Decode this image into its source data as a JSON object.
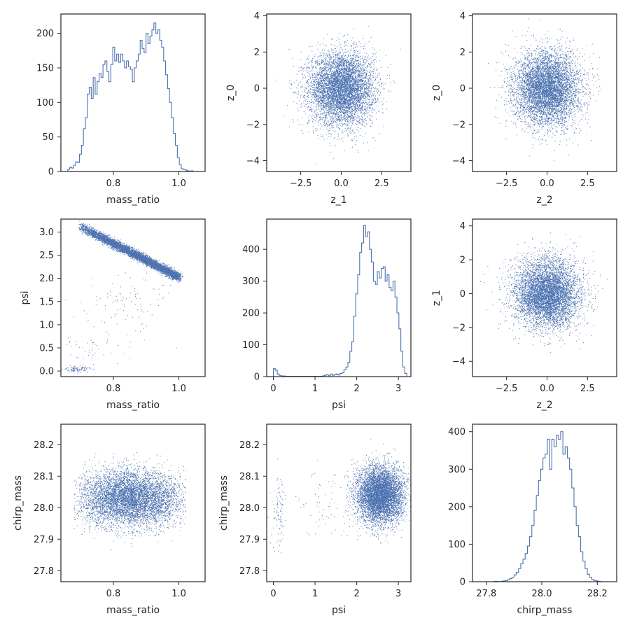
{
  "colors": {
    "series": "#4c72b0",
    "axes": "#262626",
    "background": "#ffffff"
  },
  "chart_data": [
    {
      "id": "p00",
      "type": "histogram",
      "xlabel": "mass_ratio",
      "ylabel": "",
      "xlim": [
        0.64,
        1.08
      ],
      "ylim": [
        0,
        228
      ],
      "xticks": [
        0.8,
        1.0
      ],
      "yticks": [
        0,
        50,
        100,
        150,
        200
      ],
      "hist": {
        "x0": 0.655,
        "x1": 1.055,
        "counts": [
          0,
          3,
          6,
          5,
          9,
          14,
          13,
          25,
          38,
          62,
          78,
          112,
          122,
          106,
          136,
          112,
          130,
          142,
          136,
          155,
          160,
          145,
          130,
          155,
          180,
          160,
          170,
          158,
          170,
          160,
          150,
          160,
          152,
          148,
          130,
          150,
          160,
          170,
          190,
          178,
          172,
          200,
          185,
          196,
          205,
          215,
          200,
          205,
          190,
          180,
          160,
          140,
          120,
          100,
          78,
          55,
          38,
          20,
          10,
          4,
          3,
          2,
          1,
          0,
          1,
          0,
          0
        ]
      }
    },
    {
      "id": "p01",
      "type": "scatter",
      "xlabel": "z_1",
      "ylabel": "z_0",
      "xlim": [
        -4.6,
        4.3
      ],
      "ylim": [
        -4.6,
        4.1
      ],
      "xticks": [
        -2.5,
        0.0,
        2.5
      ],
      "yticks": [
        -4,
        -2,
        0,
        2,
        4
      ],
      "cloud": {
        "kind": "gauss",
        "cx": 0,
        "cy": 0,
        "sx": 1,
        "sy": 1,
        "n": 6000
      }
    },
    {
      "id": "p02",
      "type": "scatter",
      "xlabel": "z_2",
      "ylabel": "z_0",
      "xlim": [
        -4.6,
        4.3
      ],
      "ylim": [
        -4.6,
        4.1
      ],
      "xticks": [
        -2.5,
        0.0,
        2.5
      ],
      "yticks": [
        -4,
        -2,
        0,
        2,
        4
      ],
      "cloud": {
        "kind": "gauss",
        "cx": 0,
        "cy": 0,
        "sx": 1,
        "sy": 1,
        "n": 6000
      }
    },
    {
      "id": "p10",
      "type": "scatter",
      "xlabel": "mass_ratio",
      "ylabel": "psi",
      "xlim": [
        0.64,
        1.08
      ],
      "ylim": [
        -0.12,
        3.28
      ],
      "xticks": [
        0.8,
        1.0
      ],
      "yticks": [
        0.0,
        0.5,
        1.0,
        1.5,
        2.0,
        2.5,
        3.0
      ],
      "cloud": {
        "kind": "band",
        "xa": 0.7,
        "xb": 1.0,
        "ya": 3.12,
        "yb": 2.03,
        "sx": 0.005,
        "sy": 0.045,
        "n": 6000
      }
    },
    {
      "id": "p11",
      "type": "histogram",
      "xlabel": "psi",
      "ylabel": "",
      "xlim": [
        -0.16,
        3.3
      ],
      "ylim": [
        0,
        495
      ],
      "xticks": [
        0,
        1,
        2,
        3
      ],
      "yticks": [
        0,
        100,
        200,
        300,
        400
      ],
      "hist": {
        "x0": 0,
        "x1": 3.2,
        "counts": [
          25,
          20,
          8,
          4,
          2,
          2,
          1,
          1,
          1,
          1,
          1,
          1,
          1,
          1,
          1,
          1,
          1,
          1,
          1,
          1,
          1,
          1,
          1,
          1,
          1,
          2,
          4,
          6,
          3,
          8,
          4,
          6,
          8,
          5,
          10,
          12,
          22,
          30,
          45,
          80,
          110,
          190,
          260,
          320,
          390,
          420,
          475,
          440,
          455,
          400,
          360,
          300,
          290,
          330,
          310,
          340,
          345,
          300,
          320,
          280,
          270,
          300,
          250,
          200,
          150,
          80,
          30,
          10
        ]
      }
    },
    {
      "id": "p12",
      "type": "scatter",
      "xlabel": "z_2",
      "ylabel": "z_1",
      "xlim": [
        -4.6,
        4.3
      ],
      "ylim": [
        -4.9,
        4.4
      ],
      "xticks": [
        -2.5,
        0.0,
        2.5
      ],
      "yticks": [
        -4,
        -2,
        0,
        2,
        4
      ],
      "cloud": {
        "kind": "gauss",
        "cx": 0,
        "cy": 0,
        "sx": 1,
        "sy": 1,
        "n": 6000
      }
    },
    {
      "id": "p20",
      "type": "scatter",
      "xlabel": "mass_ratio",
      "ylabel": "chirp_mass",
      "xlim": [
        0.64,
        1.08
      ],
      "ylim": [
        27.765,
        28.265
      ],
      "xticks": [
        0.8,
        1.0
      ],
      "yticks": [
        27.8,
        27.9,
        28.0,
        28.1,
        28.2
      ],
      "cloud": {
        "kind": "arch",
        "xmin": 0.68,
        "xmax": 1.02,
        "cy": 28.03,
        "sy": 0.045,
        "n": 6000
      }
    },
    {
      "id": "p21",
      "type": "scatter",
      "xlabel": "psi",
      "ylabel": "chirp_mass",
      "xlim": [
        -0.16,
        3.3
      ],
      "ylim": [
        27.765,
        28.265
      ],
      "xticks": [
        0,
        1,
        2,
        3
      ],
      "yticks": [
        27.8,
        27.9,
        28.0,
        28.1,
        28.2
      ],
      "cloud": {
        "kind": "gauss",
        "cx": 2.55,
        "cy": 28.04,
        "sx": 0.28,
        "sy": 0.045,
        "n": 6000
      }
    },
    {
      "id": "p22",
      "type": "histogram",
      "xlabel": "chirp_mass",
      "ylabel": "",
      "xlim": [
        27.75,
        28.27
      ],
      "ylim": [
        0,
        420
      ],
      "xticks": [
        27.8,
        28.0,
        28.2
      ],
      "yticks": [
        0,
        100,
        200,
        300,
        400
      ],
      "hist": {
        "x0": 27.82,
        "x1": 28.22,
        "counts": [
          0,
          1,
          1,
          0,
          1,
          2,
          3,
          5,
          8,
          12,
          18,
          25,
          35,
          48,
          60,
          75,
          95,
          120,
          150,
          190,
          230,
          270,
          300,
          330,
          340,
          380,
          300,
          380,
          360,
          390,
          380,
          400,
          340,
          360,
          330,
          300,
          250,
          200,
          150,
          120,
          80,
          55,
          35,
          20,
          12,
          6,
          3,
          2,
          1,
          0
        ]
      }
    }
  ]
}
